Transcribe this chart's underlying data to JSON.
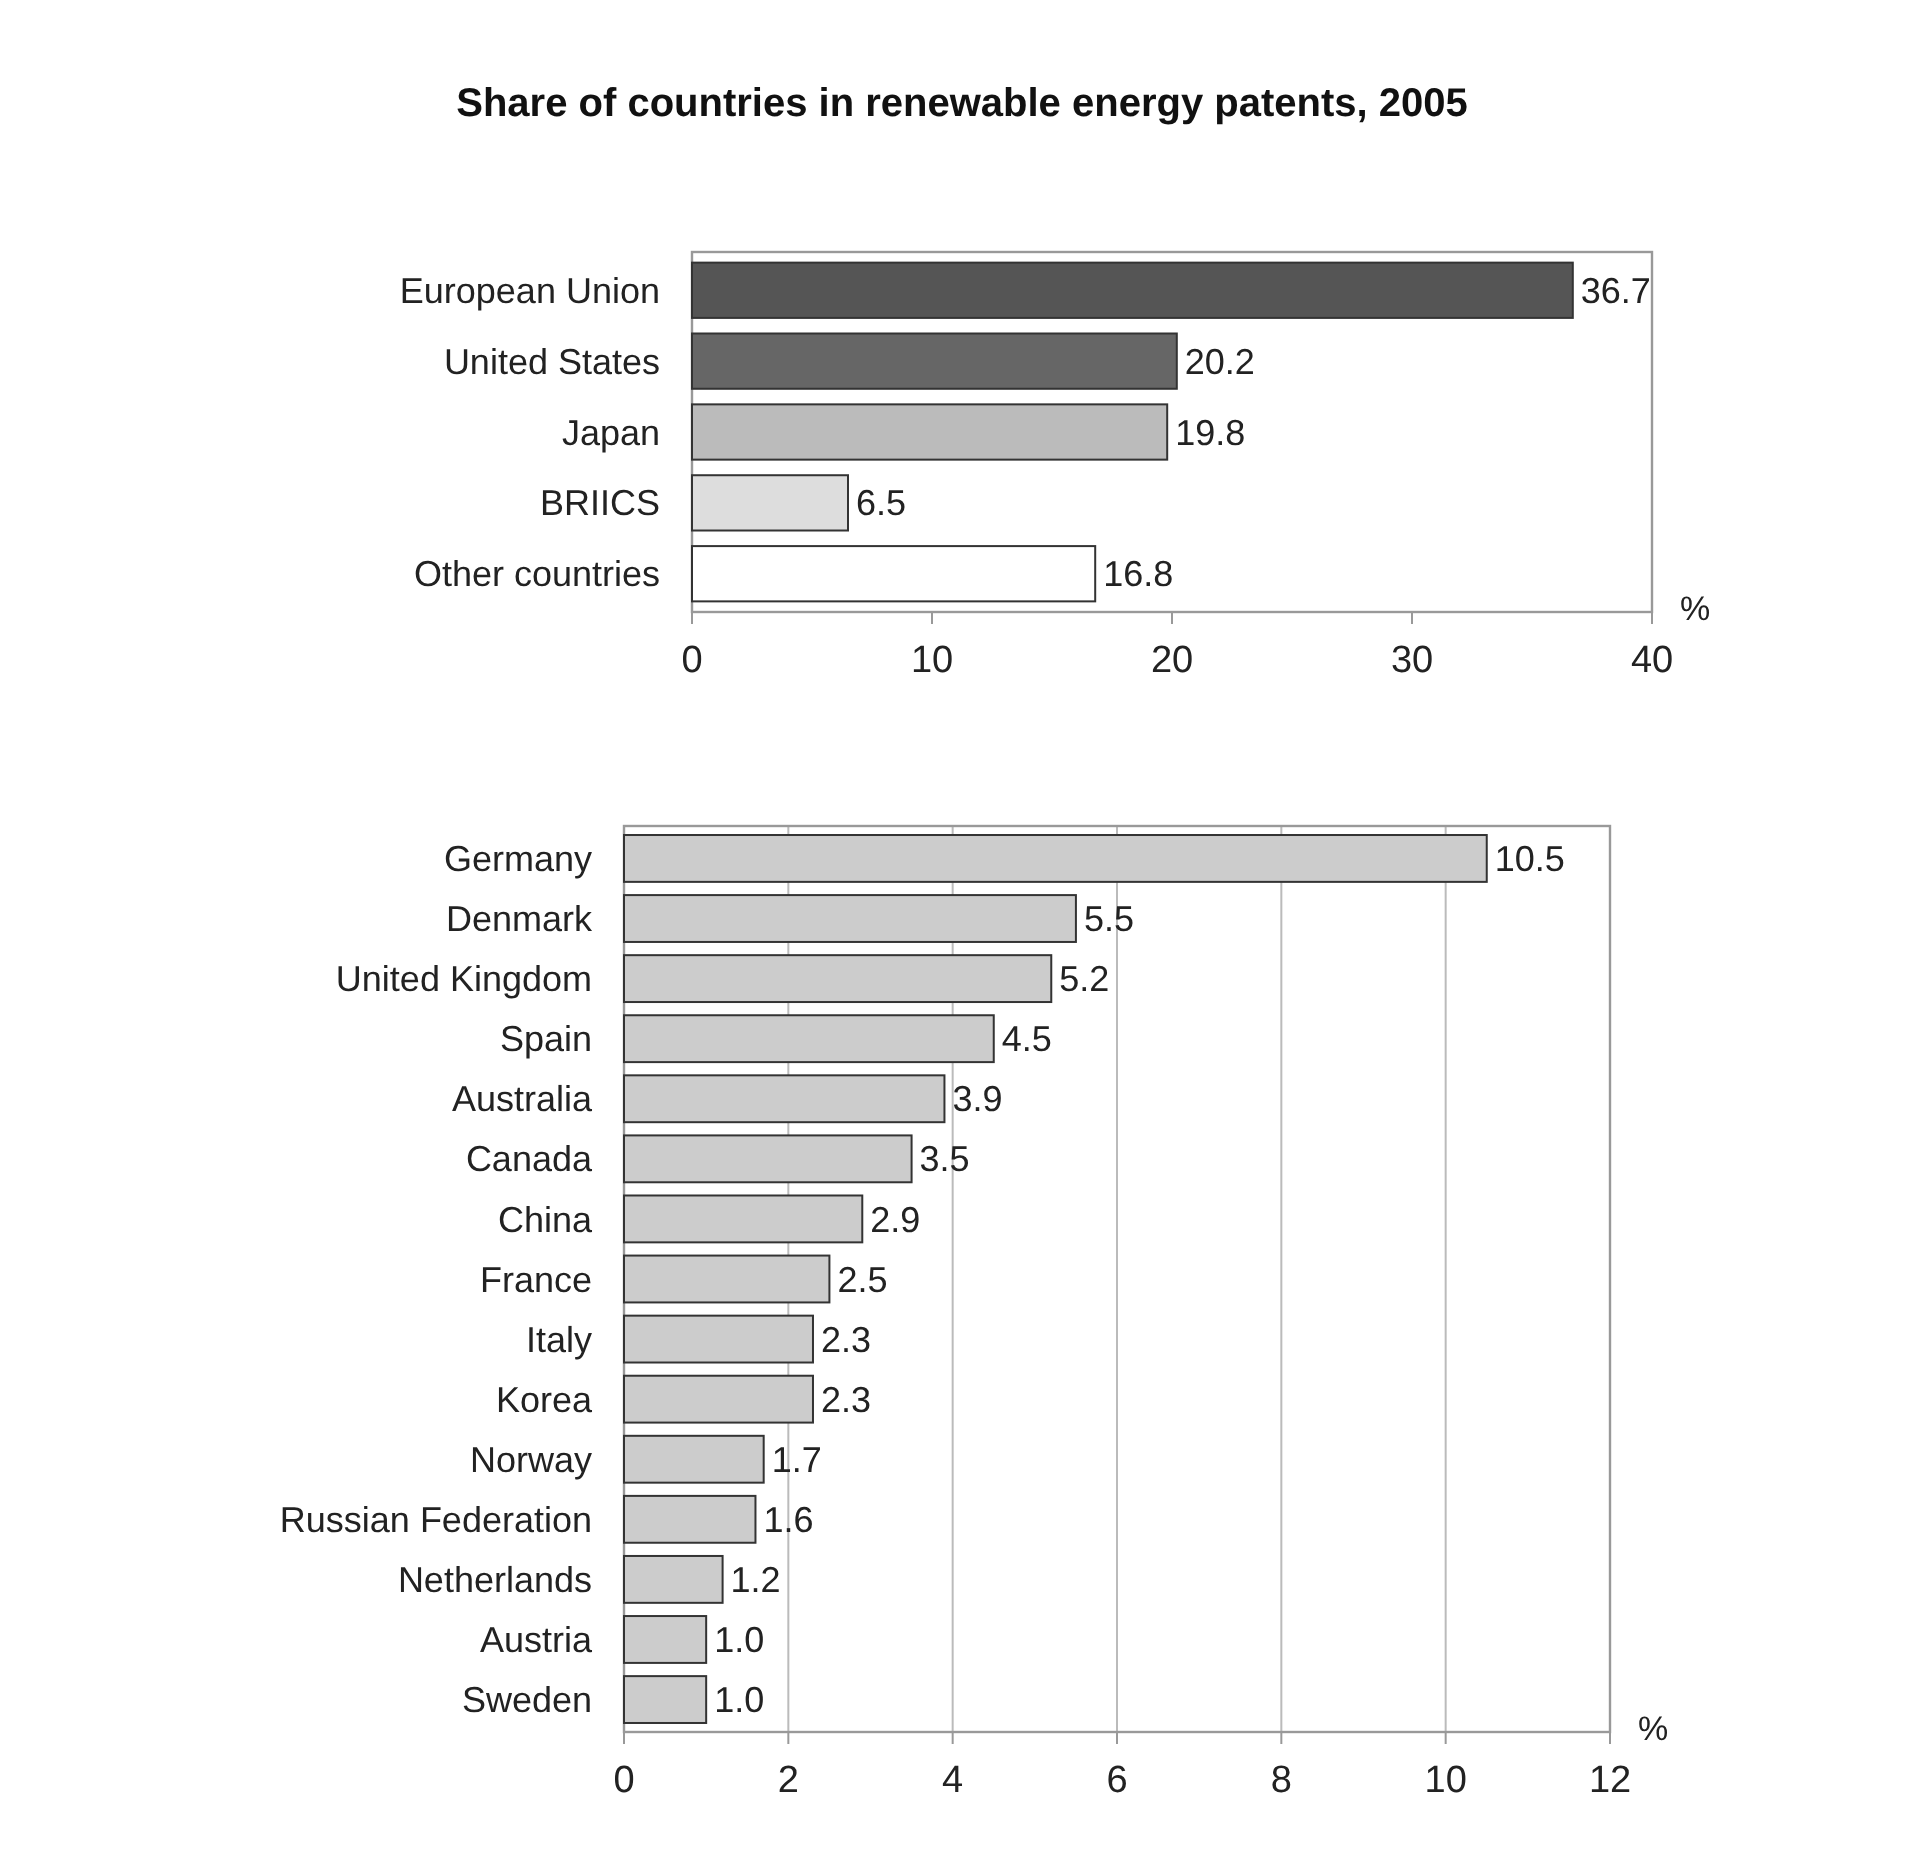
{
  "chart_data": [
    {
      "type": "bar",
      "orientation": "horizontal",
      "title": "Share of countries in renewable energy patents, 2005",
      "xlabel": "%",
      "categories": [
        "European Union",
        "United States",
        "Japan",
        "BRIICS",
        "Other countries"
      ],
      "values": [
        36.7,
        20.2,
        19.8,
        6.5,
        16.8
      ],
      "value_labels": [
        "36.7",
        "20.2",
        "19.8",
        "6.5",
        "16.8"
      ],
      "colors": [
        "#555555",
        "#666666",
        "#bbbbbb",
        "#dddddd",
        "#ffffff"
      ],
      "xlim": [
        0,
        40
      ],
      "xticks": [
        0,
        10,
        20,
        30,
        40
      ],
      "grid": false
    },
    {
      "type": "bar",
      "orientation": "horizontal",
      "xlabel": "%",
      "categories": [
        "Germany",
        "Denmark",
        "United Kingdom",
        "Spain",
        "Australia",
        "Canada",
        "China",
        "France",
        "Italy",
        "Korea",
        "Norway",
        "Russian Federation",
        "Netherlands",
        "Austria",
        "Sweden"
      ],
      "values": [
        10.5,
        5.5,
        5.2,
        4.5,
        3.9,
        3.5,
        2.9,
        2.5,
        2.3,
        2.3,
        1.7,
        1.6,
        1.2,
        1.0,
        1.0
      ],
      "value_labels": [
        "10.5",
        "5.5",
        "5.2",
        "4.5",
        "3.9",
        "3.5",
        "2.9",
        "2.5",
        "2.3",
        "2.3",
        "1.7",
        "1.6",
        "1.2",
        "1.0",
        "1.0"
      ],
      "color": "#cccccc",
      "xlim": [
        0,
        12
      ],
      "xticks": [
        0,
        2,
        4,
        6,
        8,
        10,
        12
      ],
      "grid": "x"
    }
  ]
}
